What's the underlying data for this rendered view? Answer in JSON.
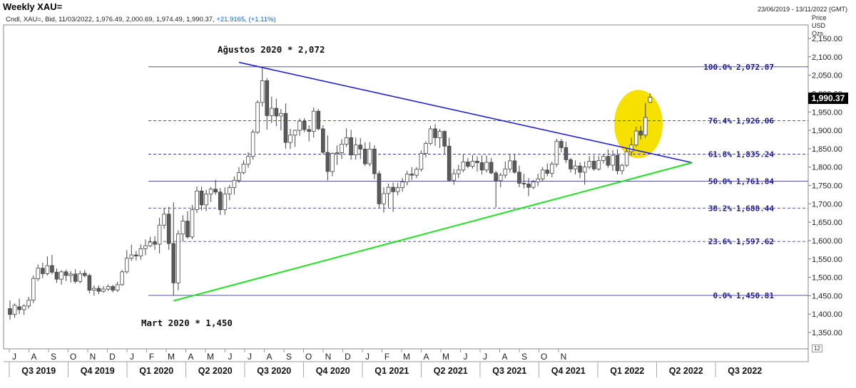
{
  "header": {
    "title": "Weekly XAU=",
    "date_range": "23/06/2019 - 13/11/2022 (GMT)",
    "subtitle_prefix": "Cndl, XAU=, Bid, 11/03/2022, 1,976.49, 2,000.69, 1,974.49, 1,990.37,",
    "subtitle_change": "+21.9165, (+1.11%)"
  },
  "price_axis": {
    "label_1": "Price",
    "label_2": "USD",
    "label_3": "Ozs",
    "last_price": "1,990.37",
    "scroll_label": "12"
  },
  "chart_data": {
    "type": "candlestick",
    "instrument": "XAU=",
    "interval": "Weekly",
    "ylim": [
      1350,
      2150
    ],
    "y_ticks": [
      "1,350.00",
      "1,400.00",
      "1,450.00",
      "1,500.00",
      "1,550.00",
      "1,600.00",
      "1,650.00",
      "1,700.00",
      "1,750.00",
      "1,800.00",
      "1,850.00",
      "1,900.00",
      "1,950.00",
      "2,000.00",
      "2,050.00",
      "2,100.00",
      "2,150.00"
    ],
    "months": [
      "J",
      "A",
      "S",
      "O",
      "N",
      "D",
      "J",
      "F",
      "M",
      "A",
      "M",
      "J",
      "J",
      "A",
      "S",
      "O",
      "N",
      "D",
      "J",
      "F",
      "M",
      "A",
      "M",
      "J",
      "J",
      "A",
      "S",
      "O",
      "N"
    ],
    "quarters": [
      "Q3 2019",
      "Q4 2019",
      "Q1 2020",
      "Q2 2020",
      "Q3 2020",
      "Q4 2020",
      "Q1 2021",
      "Q2 2021",
      "Q3 2021",
      "Q4 2021",
      "Q1 2022",
      "Q2 2022",
      "Q3 2022"
    ],
    "fibonacci": [
      {
        "pct": "100.0%",
        "value": "2,072.87",
        "level": 2072.87
      },
      {
        "pct": "76.4%",
        "value": "1,926.06",
        "level": 1926.06
      },
      {
        "pct": "61.8%",
        "value": "1,835.24",
        "level": 1835.24
      },
      {
        "pct": "50.0%",
        "value": "1,761.84",
        "level": 1761.84
      },
      {
        "pct": "38.2%",
        "value": "1,688.44",
        "level": 1688.44
      },
      {
        "pct": "23.6%",
        "value": "1,597.62",
        "level": 1597.62
      },
      {
        "pct": "0.0%",
        "value": "1,450.81",
        "level": 1450.81
      }
    ],
    "annotations": {
      "high": "Ağustos 2020 * 2,072",
      "low": "Mart 2020 * 1,450"
    },
    "trendlines": {
      "upper": {
        "color": "#2222cc",
        "from": {
          "week": 49,
          "price": 2085
        },
        "to": {
          "week": 146,
          "price": 1812
        }
      },
      "lower": {
        "color": "#22e022",
        "from": {
          "week": 35,
          "price": 1436
        },
        "to": {
          "week": 146,
          "price": 1812
        }
      }
    },
    "highlight": {
      "color": "#f5e000",
      "label": "ellipse around latest candles"
    },
    "candles": [
      {
        "o": 1415,
        "h": 1437,
        "l": 1385,
        "c": 1399
      },
      {
        "o": 1399,
        "h": 1429,
        "l": 1390,
        "c": 1424
      },
      {
        "o": 1420,
        "h": 1442,
        "l": 1400,
        "c": 1412
      },
      {
        "o": 1412,
        "h": 1427,
        "l": 1398,
        "c": 1422
      },
      {
        "o": 1422,
        "h": 1447,
        "l": 1415,
        "c": 1438
      },
      {
        "o": 1438,
        "h": 1505,
        "l": 1430,
        "c": 1497
      },
      {
        "o": 1496,
        "h": 1535,
        "l": 1490,
        "c": 1525
      },
      {
        "o": 1525,
        "h": 1540,
        "l": 1498,
        "c": 1510
      },
      {
        "o": 1510,
        "h": 1557,
        "l": 1505,
        "c": 1532
      },
      {
        "o": 1532,
        "h": 1561,
        "l": 1508,
        "c": 1514
      },
      {
        "o": 1514,
        "h": 1524,
        "l": 1485,
        "c": 1495
      },
      {
        "o": 1495,
        "h": 1519,
        "l": 1480,
        "c": 1515
      },
      {
        "o": 1515,
        "h": 1521,
        "l": 1490,
        "c": 1505
      },
      {
        "o": 1505,
        "h": 1517,
        "l": 1486,
        "c": 1509
      },
      {
        "o": 1509,
        "h": 1522,
        "l": 1483,
        "c": 1489
      },
      {
        "o": 1489,
        "h": 1518,
        "l": 1484,
        "c": 1510
      },
      {
        "o": 1511,
        "h": 1520,
        "l": 1500,
        "c": 1505
      },
      {
        "o": 1505,
        "h": 1510,
        "l": 1456,
        "c": 1465
      },
      {
        "o": 1465,
        "h": 1478,
        "l": 1450,
        "c": 1470
      },
      {
        "o": 1470,
        "h": 1478,
        "l": 1454,
        "c": 1462
      },
      {
        "o": 1462,
        "h": 1476,
        "l": 1458,
        "c": 1468
      },
      {
        "o": 1468,
        "h": 1481,
        "l": 1463,
        "c": 1475
      },
      {
        "o": 1475,
        "h": 1480,
        "l": 1459,
        "c": 1465
      },
      {
        "o": 1465,
        "h": 1488,
        "l": 1460,
        "c": 1480
      },
      {
        "o": 1480,
        "h": 1520,
        "l": 1477,
        "c": 1515
      },
      {
        "o": 1515,
        "h": 1574,
        "l": 1510,
        "c": 1552
      },
      {
        "o": 1552,
        "h": 1589,
        "l": 1545,
        "c": 1561
      },
      {
        "o": 1561,
        "h": 1572,
        "l": 1546,
        "c": 1558
      },
      {
        "o": 1558,
        "h": 1590,
        "l": 1548,
        "c": 1578
      },
      {
        "o": 1578,
        "h": 1603,
        "l": 1560,
        "c": 1586
      },
      {
        "o": 1586,
        "h": 1610,
        "l": 1582,
        "c": 1596
      },
      {
        "o": 1596,
        "h": 1612,
        "l": 1575,
        "c": 1590
      },
      {
        "o": 1590,
        "h": 1662,
        "l": 1565,
        "c": 1642
      },
      {
        "o": 1642,
        "h": 1689,
        "l": 1632,
        "c": 1672
      },
      {
        "o": 1672,
        "h": 1692,
        "l": 1575,
        "c": 1592
      },
      {
        "o": 1592,
        "h": 1704,
        "l": 1451,
        "c": 1485
      },
      {
        "o": 1485,
        "h": 1628,
        "l": 1465,
        "c": 1618
      },
      {
        "o": 1618,
        "h": 1669,
        "l": 1598,
        "c": 1653
      },
      {
        "o": 1653,
        "h": 1680,
        "l": 1605,
        "c": 1610
      },
      {
        "o": 1610,
        "h": 1697,
        "l": 1604,
        "c": 1684
      },
      {
        "o": 1684,
        "h": 1747,
        "l": 1675,
        "c": 1735
      },
      {
        "o": 1735,
        "h": 1747,
        "l": 1682,
        "c": 1697
      },
      {
        "o": 1697,
        "h": 1738,
        "l": 1680,
        "c": 1727
      },
      {
        "o": 1727,
        "h": 1746,
        "l": 1705,
        "c": 1740
      },
      {
        "o": 1740,
        "h": 1765,
        "l": 1725,
        "c": 1732
      },
      {
        "o": 1732,
        "h": 1743,
        "l": 1670,
        "c": 1684
      },
      {
        "o": 1684,
        "h": 1745,
        "l": 1670,
        "c": 1727
      },
      {
        "o": 1727,
        "h": 1752,
        "l": 1710,
        "c": 1744
      },
      {
        "o": 1744,
        "h": 1775,
        "l": 1725,
        "c": 1764
      },
      {
        "o": 1764,
        "h": 1800,
        "l": 1757,
        "c": 1785
      },
      {
        "o": 1785,
        "h": 1818,
        "l": 1780,
        "c": 1808
      },
      {
        "o": 1808,
        "h": 1840,
        "l": 1798,
        "c": 1829
      },
      {
        "o": 1829,
        "h": 1902,
        "l": 1820,
        "c": 1895
      },
      {
        "o": 1895,
        "h": 1982,
        "l": 1890,
        "c": 1976
      },
      {
        "o": 1976,
        "h": 2072,
        "l": 1965,
        "c": 2035
      },
      {
        "o": 2035,
        "h": 2042,
        "l": 1902,
        "c": 1940
      },
      {
        "o": 1940,
        "h": 1992,
        "l": 1920,
        "c": 1960
      },
      {
        "o": 1960,
        "h": 1986,
        "l": 1912,
        "c": 1939
      },
      {
        "o": 1939,
        "h": 1958,
        "l": 1900,
        "c": 1946
      },
      {
        "o": 1946,
        "h": 1973,
        "l": 1850,
        "c": 1867
      },
      {
        "o": 1867,
        "h": 1904,
        "l": 1849,
        "c": 1887
      },
      {
        "o": 1887,
        "h": 1902,
        "l": 1855,
        "c": 1900
      },
      {
        "o": 1900,
        "h": 1932,
        "l": 1885,
        "c": 1925
      },
      {
        "o": 1925,
        "h": 1933,
        "l": 1895,
        "c": 1902
      },
      {
        "o": 1902,
        "h": 1914,
        "l": 1870,
        "c": 1897
      },
      {
        "o": 1897,
        "h": 1962,
        "l": 1880,
        "c": 1952
      },
      {
        "o": 1952,
        "h": 1958,
        "l": 1900,
        "c": 1904
      },
      {
        "o": 1904,
        "h": 1914,
        "l": 1835,
        "c": 1840
      },
      {
        "o": 1840,
        "h": 1886,
        "l": 1764,
        "c": 1788
      },
      {
        "o": 1788,
        "h": 1840,
        "l": 1775,
        "c": 1837
      },
      {
        "o": 1837,
        "h": 1859,
        "l": 1806,
        "c": 1839
      },
      {
        "o": 1839,
        "h": 1876,
        "l": 1822,
        "c": 1862
      },
      {
        "o": 1862,
        "h": 1905,
        "l": 1855,
        "c": 1880
      },
      {
        "o": 1880,
        "h": 1901,
        "l": 1820,
        "c": 1833
      },
      {
        "o": 1833,
        "h": 1880,
        "l": 1820,
        "c": 1860
      },
      {
        "o": 1860,
        "h": 1879,
        "l": 1822,
        "c": 1849
      },
      {
        "o": 1849,
        "h": 1867,
        "l": 1803,
        "c": 1809
      },
      {
        "o": 1809,
        "h": 1868,
        "l": 1802,
        "c": 1849
      },
      {
        "o": 1849,
        "h": 1859,
        "l": 1767,
        "c": 1782
      },
      {
        "o": 1782,
        "h": 1790,
        "l": 1688,
        "c": 1700
      },
      {
        "o": 1700,
        "h": 1745,
        "l": 1676,
        "c": 1728
      },
      {
        "o": 1728,
        "h": 1755,
        "l": 1690,
        "c": 1745
      },
      {
        "o": 1745,
        "h": 1758,
        "l": 1678,
        "c": 1733
      },
      {
        "o": 1733,
        "h": 1757,
        "l": 1723,
        "c": 1744
      },
      {
        "o": 1744,
        "h": 1770,
        "l": 1733,
        "c": 1760
      },
      {
        "o": 1760,
        "h": 1790,
        "l": 1750,
        "c": 1781
      },
      {
        "o": 1781,
        "h": 1800,
        "l": 1765,
        "c": 1778
      },
      {
        "o": 1778,
        "h": 1800,
        "l": 1770,
        "c": 1794
      },
      {
        "o": 1794,
        "h": 1845,
        "l": 1788,
        "c": 1837
      },
      {
        "o": 1837,
        "h": 1870,
        "l": 1826,
        "c": 1864
      },
      {
        "o": 1864,
        "h": 1912,
        "l": 1860,
        "c": 1904
      },
      {
        "o": 1904,
        "h": 1917,
        "l": 1858,
        "c": 1880
      },
      {
        "o": 1880,
        "h": 1904,
        "l": 1852,
        "c": 1897
      },
      {
        "o": 1897,
        "h": 1900,
        "l": 1834,
        "c": 1857
      },
      {
        "o": 1857,
        "h": 1880,
        "l": 1760,
        "c": 1764
      },
      {
        "o": 1764,
        "h": 1795,
        "l": 1752,
        "c": 1782
      },
      {
        "o": 1782,
        "h": 1806,
        "l": 1770,
        "c": 1792
      },
      {
        "o": 1792,
        "h": 1834,
        "l": 1786,
        "c": 1814
      },
      {
        "o": 1814,
        "h": 1825,
        "l": 1797,
        "c": 1802
      },
      {
        "o": 1802,
        "h": 1833,
        "l": 1796,
        "c": 1816
      },
      {
        "o": 1816,
        "h": 1829,
        "l": 1788,
        "c": 1812
      },
      {
        "o": 1812,
        "h": 1832,
        "l": 1780,
        "c": 1792
      },
      {
        "o": 1792,
        "h": 1831,
        "l": 1785,
        "c": 1813
      },
      {
        "o": 1813,
        "h": 1825,
        "l": 1781,
        "c": 1784
      },
      {
        "o": 1784,
        "h": 1790,
        "l": 1690,
        "c": 1763
      },
      {
        "o": 1763,
        "h": 1784,
        "l": 1745,
        "c": 1778
      },
      {
        "o": 1778,
        "h": 1815,
        "l": 1770,
        "c": 1795
      },
      {
        "o": 1795,
        "h": 1834,
        "l": 1785,
        "c": 1817
      },
      {
        "o": 1817,
        "h": 1834,
        "l": 1782,
        "c": 1786
      },
      {
        "o": 1786,
        "h": 1804,
        "l": 1745,
        "c": 1756
      },
      {
        "o": 1756,
        "h": 1782,
        "l": 1742,
        "c": 1754
      },
      {
        "o": 1754,
        "h": 1770,
        "l": 1721,
        "c": 1745
      },
      {
        "o": 1745,
        "h": 1765,
        "l": 1740,
        "c": 1760
      },
      {
        "o": 1760,
        "h": 1782,
        "l": 1748,
        "c": 1768
      },
      {
        "o": 1768,
        "h": 1800,
        "l": 1760,
        "c": 1792
      },
      {
        "o": 1792,
        "h": 1810,
        "l": 1775,
        "c": 1783
      },
      {
        "o": 1783,
        "h": 1815,
        "l": 1772,
        "c": 1808
      },
      {
        "o": 1808,
        "h": 1877,
        "l": 1800,
        "c": 1870
      },
      {
        "o": 1870,
        "h": 1877,
        "l": 1840,
        "c": 1853
      },
      {
        "o": 1853,
        "h": 1869,
        "l": 1811,
        "c": 1820
      },
      {
        "o": 1820,
        "h": 1825,
        "l": 1785,
        "c": 1795
      },
      {
        "o": 1795,
        "h": 1818,
        "l": 1780,
        "c": 1803
      },
      {
        "o": 1803,
        "h": 1813,
        "l": 1770,
        "c": 1786
      },
      {
        "o": 1786,
        "h": 1815,
        "l": 1752,
        "c": 1800
      },
      {
        "o": 1800,
        "h": 1830,
        "l": 1795,
        "c": 1816
      },
      {
        "o": 1816,
        "h": 1832,
        "l": 1790,
        "c": 1795
      },
      {
        "o": 1795,
        "h": 1830,
        "l": 1790,
        "c": 1818
      },
      {
        "o": 1818,
        "h": 1834,
        "l": 1810,
        "c": 1829
      },
      {
        "o": 1829,
        "h": 1848,
        "l": 1798,
        "c": 1805
      },
      {
        "o": 1805,
        "h": 1846,
        "l": 1790,
        "c": 1832
      },
      {
        "o": 1832,
        "h": 1848,
        "l": 1780,
        "c": 1790
      },
      {
        "o": 1790,
        "h": 1809,
        "l": 1780,
        "c": 1805
      },
      {
        "o": 1805,
        "h": 1853,
        "l": 1800,
        "c": 1842
      },
      {
        "o": 1842,
        "h": 1880,
        "l": 1830,
        "c": 1860
      },
      {
        "o": 1860,
        "h": 1910,
        "l": 1855,
        "c": 1898
      },
      {
        "o": 1898,
        "h": 1912,
        "l": 1875,
        "c": 1887
      },
      {
        "o": 1887,
        "h": 1974,
        "l": 1880,
        "c": 1935
      },
      {
        "o": 1976,
        "h": 2001,
        "l": 1974,
        "c": 1990
      }
    ]
  }
}
